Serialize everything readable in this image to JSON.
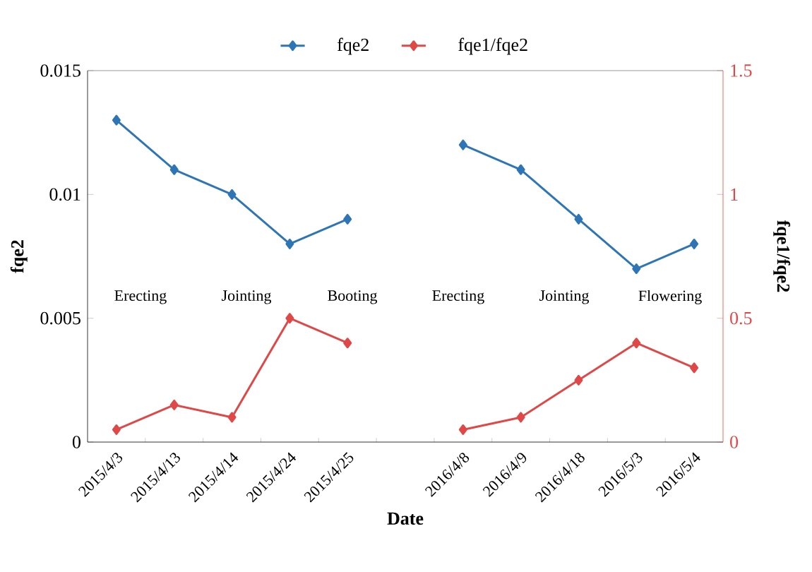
{
  "chart_data": {
    "type": "line",
    "categories": [
      "2015/4/3",
      "2015/4/13",
      "2015/4/14",
      "2015/4/24",
      "2015/4/25",
      null,
      "2016/4/8",
      "2016/4/9",
      "2016/4/18",
      "2016/5/3",
      "2016/5/4"
    ],
    "series": [
      {
        "name": "fqe2",
        "color": "#2e75b6",
        "values": [
          0.013,
          0.011,
          0.01,
          0.008,
          0.009,
          null,
          0.012,
          0.011,
          0.009,
          0.007,
          0.008
        ]
      },
      {
        "name": "fqe1/fqe2",
        "color": "#e04848",
        "axis": "y2",
        "values": [
          0.05,
          0.15,
          0.1,
          0.5,
          0.4,
          null,
          0.05,
          0.1,
          0.25,
          0.4,
          0.3
        ]
      }
    ],
    "xlabel": "Date",
    "ylabel": "fqe2",
    "y2label": "fqe1/fqe2",
    "ylim": [
      0,
      0.015
    ],
    "yticks": [
      0,
      0.005,
      0.01,
      0.015
    ],
    "y2lim": [
      0,
      1.5
    ],
    "y2ticks": [
      0,
      0.5,
      1,
      1.5
    ],
    "annotations": [
      "Erecting",
      "Jointing",
      "Booting",
      "Erecting",
      "Jointing",
      "Flowering"
    ],
    "legend": "top",
    "marker": "diamond",
    "line_style": "solid",
    "grid": false
  }
}
